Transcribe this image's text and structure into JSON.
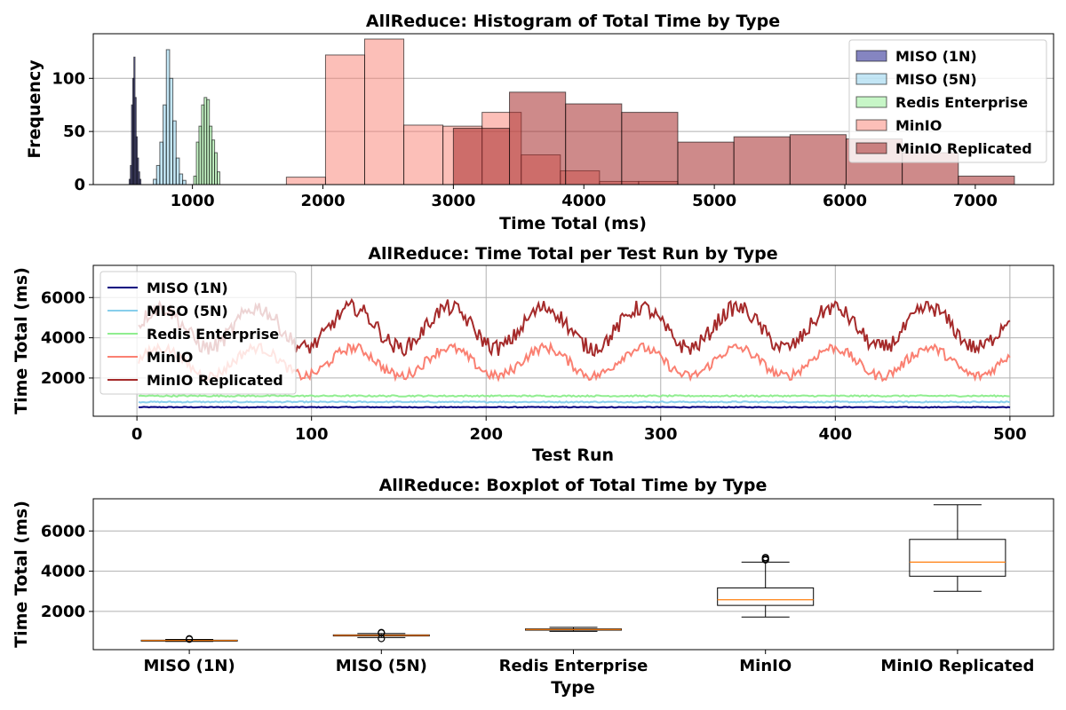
{
  "chart_data": [
    {
      "type": "bar",
      "chart_kind": "histogram",
      "title": "AllReduce: Histogram of Total Time by Type",
      "xlabel": "Time Total (ms)",
      "ylabel": "Frequency",
      "xlim": [
        240,
        7600
      ],
      "ylim": [
        0,
        142
      ],
      "xticks": [
        1000,
        2000,
        3000,
        4000,
        5000,
        6000,
        7000
      ],
      "yticks": [
        0,
        50,
        100
      ],
      "grid": "y",
      "legend_position": "top-right",
      "series": [
        {
          "name": "MISO (1N)",
          "color": "#0b0b84",
          "alpha": 0.5,
          "bins": [
            {
              "x0": 515,
              "x1": 524,
              "count": 5
            },
            {
              "x0": 524,
              "x1": 533,
              "count": 18
            },
            {
              "x0": 533,
              "x1": 542,
              "count": 75
            },
            {
              "x0": 542,
              "x1": 551,
              "count": 100
            },
            {
              "x0": 551,
              "x1": 560,
              "count": 120
            },
            {
              "x0": 560,
              "x1": 569,
              "count": 82
            },
            {
              "x0": 569,
              "x1": 578,
              "count": 45
            },
            {
              "x0": 578,
              "x1": 587,
              "count": 25
            },
            {
              "x0": 587,
              "x1": 596,
              "count": 12
            },
            {
              "x0": 596,
              "x1": 605,
              "count": 5
            }
          ]
        },
        {
          "name": "MISO (5N)",
          "color": "#87ceeb",
          "alpha": 0.5,
          "bins": [
            {
              "x0": 700,
              "x1": 725,
              "count": 5
            },
            {
              "x0": 725,
              "x1": 750,
              "count": 18
            },
            {
              "x0": 750,
              "x1": 775,
              "count": 40
            },
            {
              "x0": 775,
              "x1": 800,
              "count": 75
            },
            {
              "x0": 800,
              "x1": 825,
              "count": 127
            },
            {
              "x0": 825,
              "x1": 850,
              "count": 100
            },
            {
              "x0": 850,
              "x1": 875,
              "count": 60
            },
            {
              "x0": 875,
              "x1": 900,
              "count": 25
            },
            {
              "x0": 900,
              "x1": 925,
              "count": 10
            },
            {
              "x0": 925,
              "x1": 950,
              "count": 4
            }
          ]
        },
        {
          "name": "Redis Enterprise",
          "color": "#90ee90",
          "alpha": 0.5,
          "bins": [
            {
              "x0": 1010,
              "x1": 1030,
              "count": 8
            },
            {
              "x0": 1030,
              "x1": 1050,
              "count": 40
            },
            {
              "x0": 1050,
              "x1": 1070,
              "count": 55
            },
            {
              "x0": 1070,
              "x1": 1090,
              "count": 75
            },
            {
              "x0": 1090,
              "x1": 1110,
              "count": 82
            },
            {
              "x0": 1110,
              "x1": 1130,
              "count": 80
            },
            {
              "x0": 1130,
              "x1": 1150,
              "count": 55
            },
            {
              "x0": 1150,
              "x1": 1170,
              "count": 42
            },
            {
              "x0": 1170,
              "x1": 1190,
              "count": 30
            },
            {
              "x0": 1190,
              "x1": 1210,
              "count": 12
            }
          ]
        },
        {
          "name": "MinIO",
          "color": "#fa8072",
          "alpha": 0.5,
          "bins": [
            {
              "x0": 1720,
              "x1": 2020,
              "count": 7
            },
            {
              "x0": 2020,
              "x1": 2320,
              "count": 122
            },
            {
              "x0": 2320,
              "x1": 2620,
              "count": 137
            },
            {
              "x0": 2620,
              "x1": 2920,
              "count": 56
            },
            {
              "x0": 2920,
              "x1": 3220,
              "count": 55
            },
            {
              "x0": 3220,
              "x1": 3520,
              "count": 68
            },
            {
              "x0": 3520,
              "x1": 3820,
              "count": 28
            },
            {
              "x0": 3820,
              "x1": 4120,
              "count": 13
            },
            {
              "x0": 4120,
              "x1": 4420,
              "count": 3
            },
            {
              "x0": 4420,
              "x1": 4720,
              "count": 3
            }
          ]
        },
        {
          "name": "MinIO Replicated",
          "color": "#a52a2a",
          "alpha": 0.55,
          "bins": [
            {
              "x0": 3000,
              "x1": 3430,
              "count": 53
            },
            {
              "x0": 3430,
              "x1": 3860,
              "count": 87
            },
            {
              "x0": 3860,
              "x1": 4290,
              "count": 76
            },
            {
              "x0": 4290,
              "x1": 4720,
              "count": 68
            },
            {
              "x0": 4720,
              "x1": 5150,
              "count": 40
            },
            {
              "x0": 5150,
              "x1": 5580,
              "count": 45
            },
            {
              "x0": 5580,
              "x1": 6010,
              "count": 47
            },
            {
              "x0": 6010,
              "x1": 6440,
              "count": 43
            },
            {
              "x0": 6440,
              "x1": 6870,
              "count": 30
            },
            {
              "x0": 6870,
              "x1": 7300,
              "count": 8
            }
          ]
        }
      ]
    },
    {
      "type": "line",
      "title": "AllReduce: Time Total per Test Run by Type",
      "xlabel": "Test Run",
      "ylabel": "Time Total (ms)",
      "xlim": [
        -25,
        525
      ],
      "ylim": [
        100,
        7600
      ],
      "xticks": [
        0,
        100,
        200,
        300,
        400,
        500
      ],
      "yticks": [
        2000,
        4000,
        6000
      ],
      "grid": "both",
      "legend_position": "top-left",
      "n_runs": 500,
      "series": [
        {
          "name": "MISO (1N)",
          "color": "#000080",
          "level": 550,
          "spread": 40
        },
        {
          "name": "MISO (5N)",
          "color": "#87ceeb",
          "level": 810,
          "spread": 60
        },
        {
          "name": "Redis Enterprise",
          "color": "#90ee90",
          "level": 1110,
          "spread": 70
        },
        {
          "name": "MinIO",
          "color": "#fa8072",
          "level": 2800,
          "amplitude": 700,
          "period": 55,
          "spread": 500,
          "peak": 4700
        },
        {
          "name": "MinIO Replicated",
          "color": "#a52a2a",
          "level": 4500,
          "amplitude": 1000,
          "period": 55,
          "spread": 800,
          "peak": 7300
        }
      ]
    },
    {
      "type": "box",
      "title": "AllReduce: Boxplot of Total Time by Type",
      "xlabel": "Type",
      "ylabel": "Time Total (ms)",
      "ylim": [
        100,
        7600
      ],
      "yticks": [
        2000,
        4000,
        6000
      ],
      "grid": "y",
      "categories": [
        "MISO (1N)",
        "MISO (5N)",
        "Redis Enterprise",
        "MinIO",
        "MinIO Replicated"
      ],
      "boxes": [
        {
          "whislo": 510,
          "q1": 540,
          "med": 555,
          "q3": 570,
          "whishi": 610,
          "fliers": [
            620,
            640
          ]
        },
        {
          "whislo": 700,
          "q1": 780,
          "med": 810,
          "q3": 835,
          "whishi": 900,
          "fliers": [
            650,
            930,
            950
          ]
        },
        {
          "whislo": 1010,
          "q1": 1070,
          "med": 1100,
          "q3": 1130,
          "whishi": 1210,
          "fliers": []
        },
        {
          "whislo": 1720,
          "q1": 2300,
          "med": 2580,
          "q3": 3170,
          "whishi": 4450,
          "fliers": [
            4560,
            4620,
            4680
          ]
        },
        {
          "whislo": 3000,
          "q1": 3750,
          "med": 4450,
          "q3": 5580,
          "whishi": 7300,
          "fliers": []
        }
      ],
      "box_color": "#000000",
      "median_color": "#ff7f0e"
    }
  ]
}
